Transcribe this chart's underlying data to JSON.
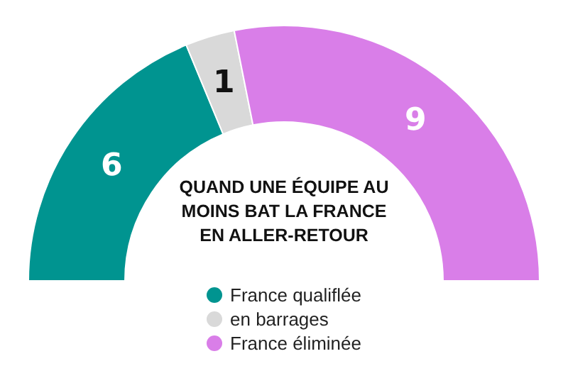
{
  "chart_data": {
    "type": "donut",
    "title": "QUAND UNE ÉQUIPE AU MOINS BAT LA FRANCE EN ALLER-RETOUR",
    "categories": [
      "France qualiflée",
      "en barrages",
      "France éliminée"
    ],
    "values": [
      6,
      1,
      9
    ],
    "colors": [
      "#009490",
      "#d9d9d9",
      "#d97ee8"
    ],
    "data_labels": true,
    "legend": "bottom"
  }
}
